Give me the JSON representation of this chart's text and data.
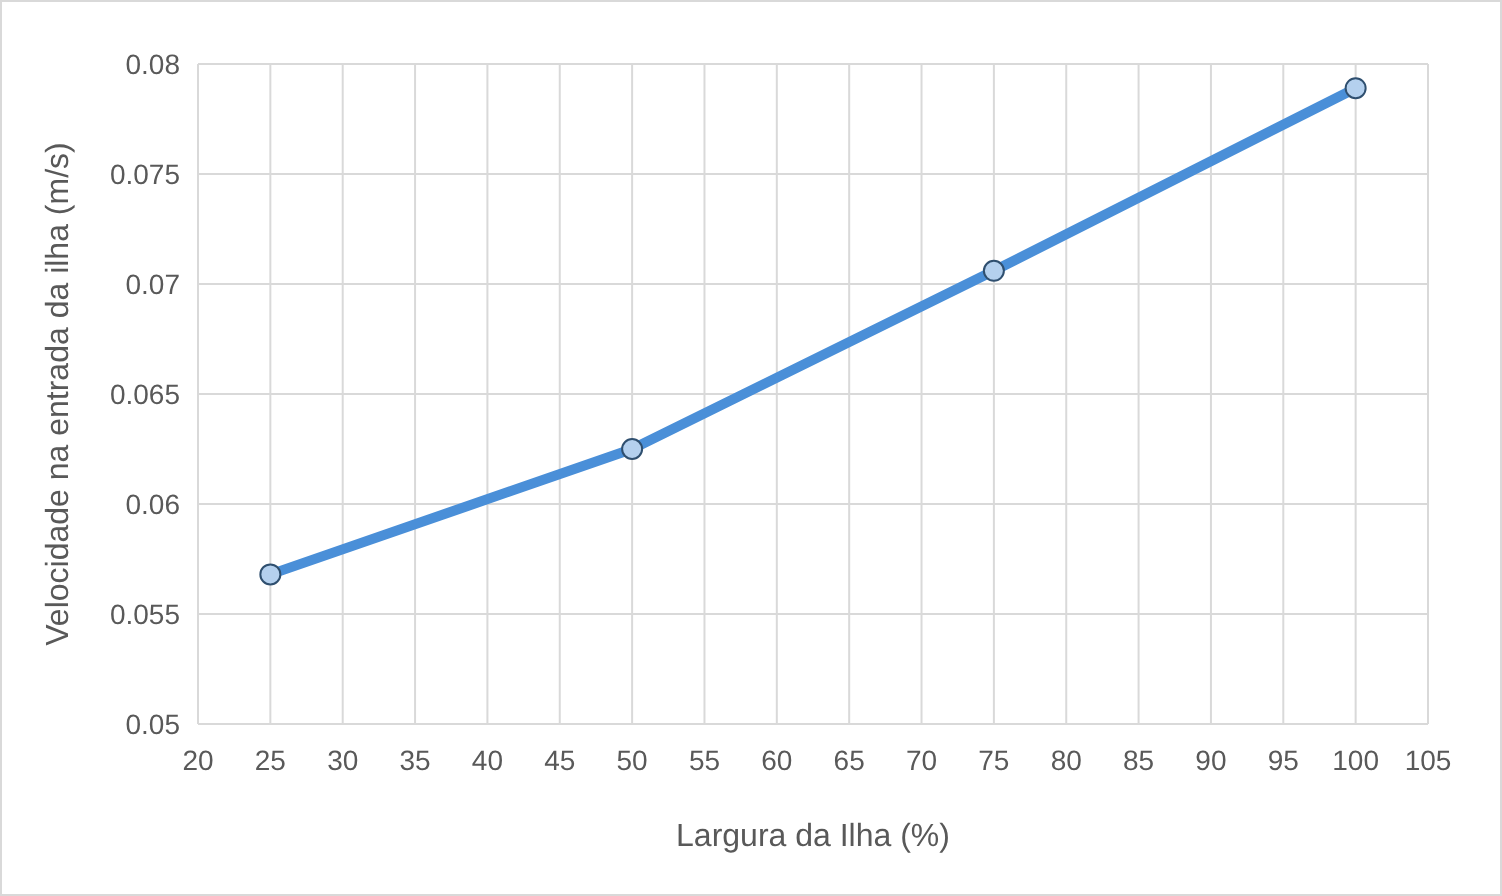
{
  "chart_data": {
    "type": "line",
    "xlabel": "Largura da Ilha (%)",
    "ylabel": "Velocidade na entrada da ilha (m/s)",
    "x": [
      25,
      50,
      75,
      100
    ],
    "series": [
      {
        "color": "#4a8fd8",
        "values": [
          0.0568,
          0.0625,
          0.0706,
          0.0789
        ]
      }
    ],
    "xlim": [
      20,
      105
    ],
    "xticks": [
      20,
      25,
      30,
      35,
      40,
      45,
      50,
      55,
      60,
      65,
      70,
      75,
      80,
      85,
      90,
      95,
      100,
      105
    ],
    "ylim": [
      0.05,
      0.08
    ],
    "yticks": [
      0.05,
      0.055,
      0.06,
      0.065,
      0.07,
      0.075,
      0.08
    ],
    "grid": true,
    "marker": "circle",
    "line_style": "solid"
  }
}
